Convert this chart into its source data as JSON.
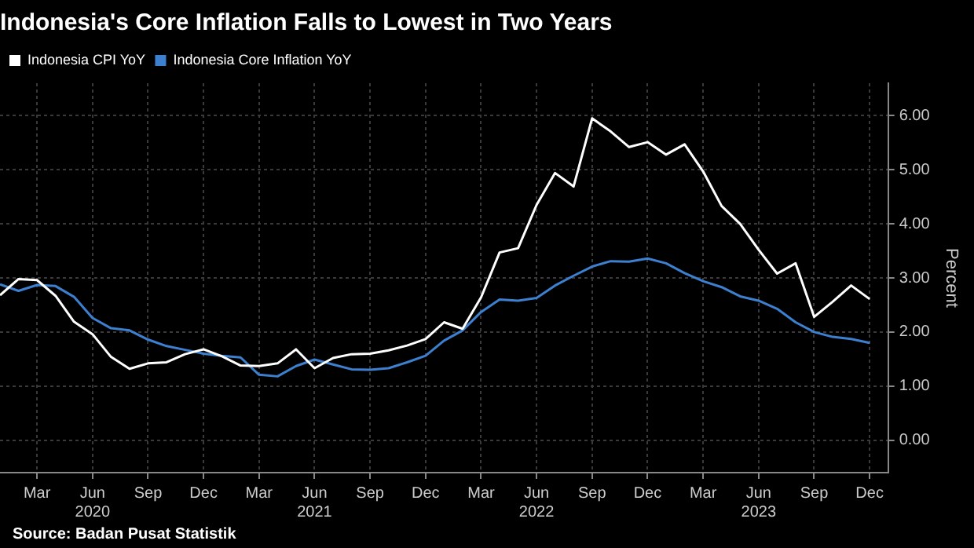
{
  "chart_data": {
    "type": "line",
    "title": "Indonesia's Core Inflation Falls to Lowest in Two Years",
    "ylabel": "Percent",
    "annotations": [
      "Source: Badan Pusat Statistik"
    ],
    "x": [
      "2020-01",
      "2020-02",
      "2020-03",
      "2020-04",
      "2020-05",
      "2020-06",
      "2020-07",
      "2020-08",
      "2020-09",
      "2020-10",
      "2020-11",
      "2020-12",
      "2021-01",
      "2021-02",
      "2021-03",
      "2021-04",
      "2021-05",
      "2021-06",
      "2021-07",
      "2021-08",
      "2021-09",
      "2021-10",
      "2021-11",
      "2021-12",
      "2022-01",
      "2022-02",
      "2022-03",
      "2022-04",
      "2022-05",
      "2022-06",
      "2022-07",
      "2022-08",
      "2022-09",
      "2022-10",
      "2022-11",
      "2022-12",
      "2023-01",
      "2023-02",
      "2023-03",
      "2023-04",
      "2023-05",
      "2023-06",
      "2023-07",
      "2023-08",
      "2023-09",
      "2023-10",
      "2023-11",
      "2023-12"
    ],
    "series": [
      {
        "name": "Indonesia CPI YoY",
        "color": "#ffffff",
        "values": [
          2.68,
          2.98,
          2.96,
          2.67,
          2.19,
          1.96,
          1.54,
          1.32,
          1.42,
          1.44,
          1.59,
          1.68,
          1.55,
          1.38,
          1.37,
          1.42,
          1.68,
          1.33,
          1.52,
          1.59,
          1.6,
          1.66,
          1.75,
          1.87,
          2.18,
          2.06,
          2.64,
          3.47,
          3.55,
          4.35,
          4.94,
          4.69,
          5.95,
          5.71,
          5.42,
          5.51,
          5.28,
          5.47,
          4.97,
          4.33,
          4.0,
          3.52,
          3.08,
          3.27,
          2.28,
          2.56,
          2.86,
          2.61
        ]
      },
      {
        "name": "Indonesia Core Inflation YoY",
        "color": "#3d80d0",
        "values": [
          2.88,
          2.76,
          2.87,
          2.85,
          2.65,
          2.26,
          2.07,
          2.03,
          1.86,
          1.74,
          1.67,
          1.6,
          1.56,
          1.53,
          1.21,
          1.18,
          1.37,
          1.49,
          1.4,
          1.31,
          1.3,
          1.33,
          1.44,
          1.56,
          1.84,
          2.03,
          2.37,
          2.6,
          2.58,
          2.63,
          2.86,
          3.04,
          3.21,
          3.31,
          3.3,
          3.36,
          3.27,
          3.09,
          2.94,
          2.83,
          2.66,
          2.58,
          2.43,
          2.18,
          2.0,
          1.91,
          1.87,
          1.8
        ]
      }
    ],
    "xlim": [
      "2020-01",
      "2024-01"
    ],
    "xticks": [
      {
        "value": "2020-03",
        "label": "Mar"
      },
      {
        "value": "2020-06",
        "label": "Jun\n2020"
      },
      {
        "value": "2020-09",
        "label": "Sep"
      },
      {
        "value": "2020-12",
        "label": "Dec"
      },
      {
        "value": "2021-03",
        "label": "Mar"
      },
      {
        "value": "2021-06",
        "label": "Jun\n2021"
      },
      {
        "value": "2021-09",
        "label": "Sep"
      },
      {
        "value": "2021-12",
        "label": "Dec"
      },
      {
        "value": "2022-03",
        "label": "Mar"
      },
      {
        "value": "2022-06",
        "label": "Jun\n2022"
      },
      {
        "value": "2022-09",
        "label": "Sep"
      },
      {
        "value": "2022-12",
        "label": "Dec"
      },
      {
        "value": "2023-03",
        "label": "Mar"
      },
      {
        "value": "2023-06",
        "label": "Jun\n2023"
      },
      {
        "value": "2023-09",
        "label": "Sep"
      },
      {
        "value": "2023-12",
        "label": "Dec"
      }
    ],
    "ylim": [
      -0.6,
      6.6
    ],
    "yticks": [
      {
        "value": 0,
        "label": "0.00"
      },
      {
        "value": 1,
        "label": "1.00"
      },
      {
        "value": 2,
        "label": "2.00"
      },
      {
        "value": 3,
        "label": "3.00"
      },
      {
        "value": 4,
        "label": "4.00"
      },
      {
        "value": 5,
        "label": "5.00"
      },
      {
        "value": 6,
        "label": "6.00"
      }
    ],
    "grid": true,
    "legend": "top left",
    "marker": "none",
    "line_style": "solid"
  }
}
